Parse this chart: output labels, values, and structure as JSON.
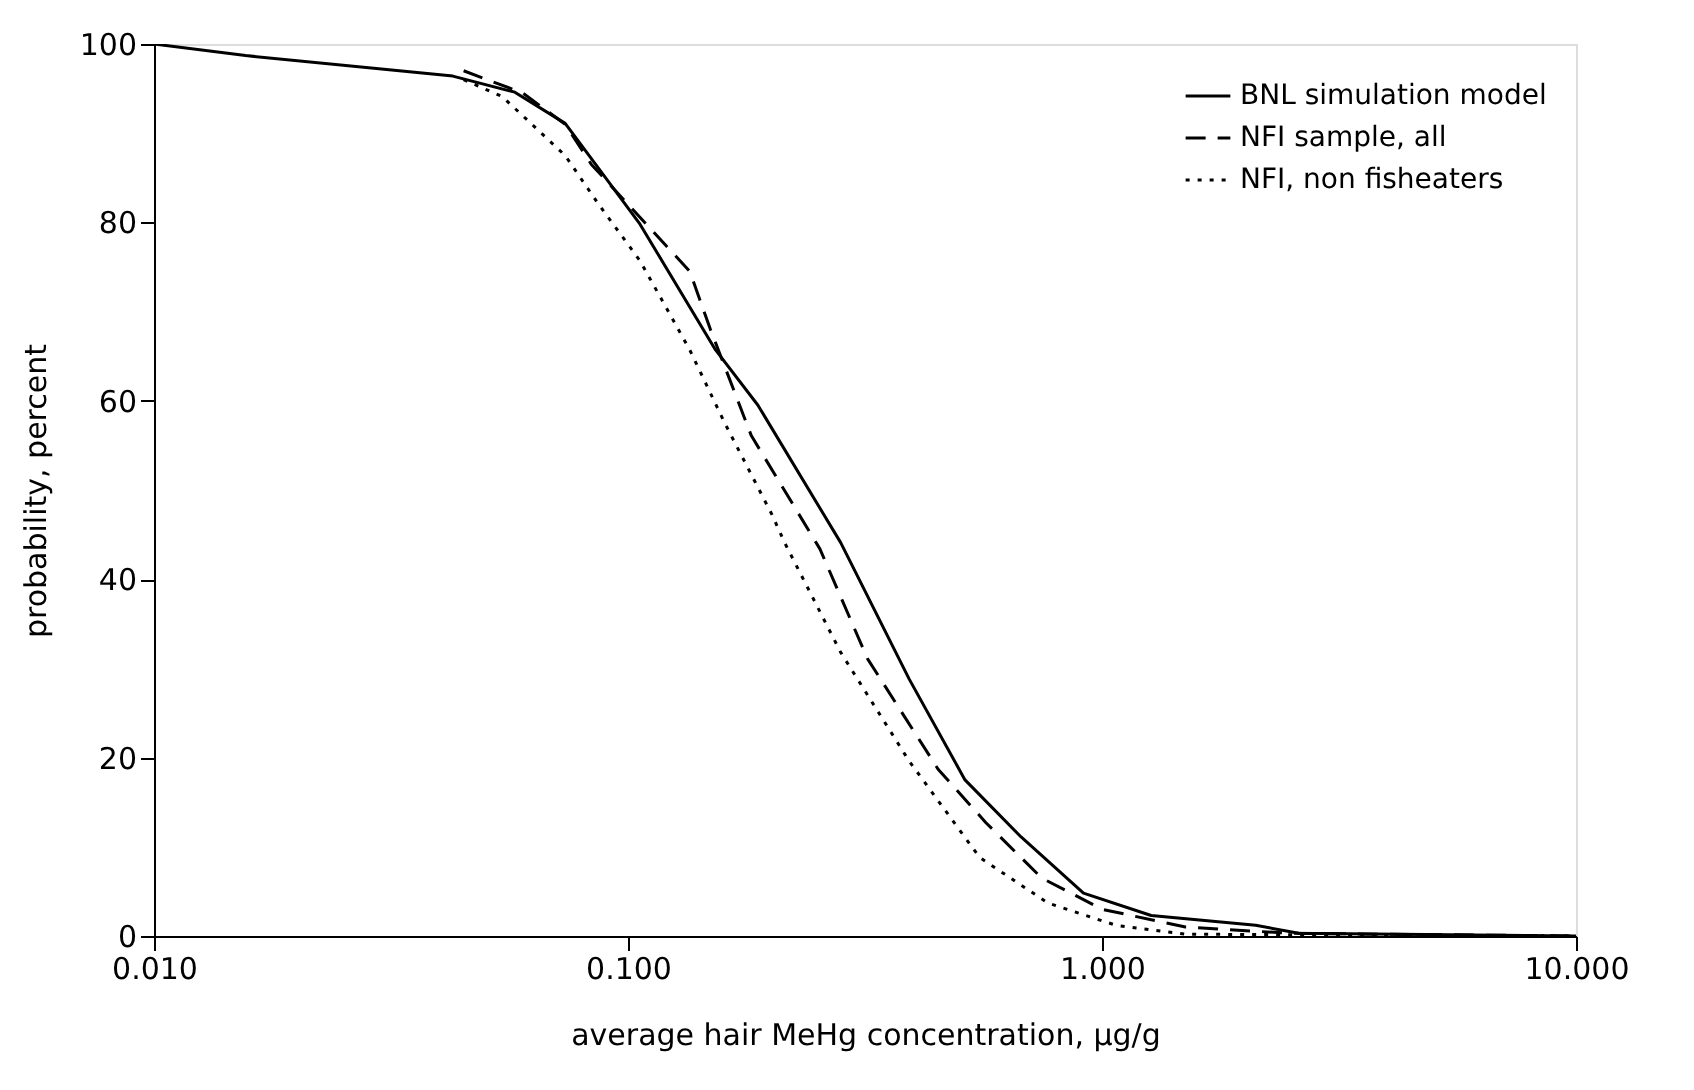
{
  "chart_data": {
    "type": "line",
    "xlabel": "average hair MeHg concentration, μg/g",
    "ylabel": "probability, percent",
    "log": "x",
    "xlim": [
      0.01,
      10
    ],
    "xticks": [
      {
        "value": 0.01,
        "label": "0.010"
      },
      {
        "value": 0.1,
        "label": "0.100"
      },
      {
        "value": 1,
        "label": "1.000"
      },
      {
        "value": 10,
        "label": "10.000"
      }
    ],
    "ylim": [
      0,
      100
    ],
    "yticks": [
      0,
      20,
      40,
      60,
      80,
      100
    ],
    "grid": false,
    "legend": "top right",
    "marker": "none",
    "series": [
      {
        "name": "BNL simulation model",
        "color": "#000000",
        "line_style": "solid",
        "x": [
          0.01,
          0.0156,
          0.0427,
          0.0577,
          0.0737,
          0.106,
          0.153,
          0.188,
          0.281,
          0.392,
          0.514,
          0.675,
          0.914,
          1.27,
          2.11,
          2.6,
          10
        ],
        "values": [
          100,
          98.7,
          96.4,
          94.6,
          91.1,
          79.8,
          65.7,
          59.5,
          44.1,
          28.8,
          17.5,
          11.1,
          4.8,
          2.3,
          1.2,
          0.3,
          0
        ]
      },
      {
        "name": "NFI sample, all",
        "color": "#000000",
        "line_style": "dashed",
        "x": [
          0.045,
          0.06,
          0.0737,
          0.0837,
          0.135,
          0.149,
          0.182,
          0.254,
          0.32,
          0.451,
          0.569,
          0.746,
          1.0,
          1.5,
          2.5,
          10
        ],
        "values": [
          97,
          94.5,
          91,
          86.5,
          74.5,
          68.1,
          56.1,
          43.4,
          31.1,
          18.7,
          12.7,
          6.5,
          3,
          1,
          0.3,
          0
        ]
      },
      {
        "name": "NFI, non fisheaters",
        "color": "#000000",
        "line_style": "dotted",
        "x": [
          0.045,
          0.0543,
          0.0737,
          0.0865,
          0.106,
          0.135,
          0.16,
          0.201,
          0.214,
          0.281,
          0.392,
          0.552,
          0.769,
          1.07,
          1.5,
          10
        ],
        "values": [
          96,
          94.1,
          87.5,
          82.1,
          75.7,
          65.7,
          57.5,
          47.3,
          44.1,
          31.8,
          19.6,
          8.8,
          3.7,
          1.2,
          0.2,
          0
        ]
      }
    ]
  }
}
